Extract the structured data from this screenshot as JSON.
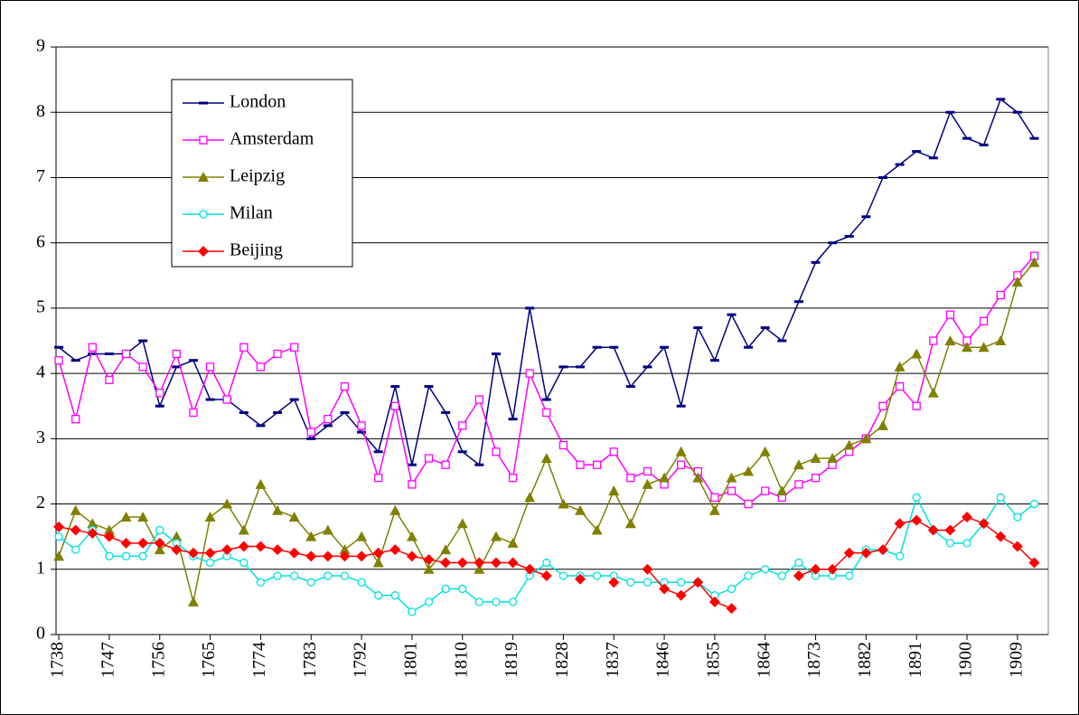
{
  "chart_data": {
    "type": "line",
    "x": [
      1738,
      1741,
      1744,
      1747,
      1750,
      1753,
      1756,
      1759,
      1762,
      1765,
      1768,
      1771,
      1774,
      1777,
      1780,
      1783,
      1786,
      1789,
      1792,
      1795,
      1798,
      1801,
      1804,
      1807,
      1810,
      1813,
      1816,
      1819,
      1822,
      1825,
      1828,
      1831,
      1834,
      1837,
      1840,
      1843,
      1846,
      1849,
      1852,
      1855,
      1858,
      1861,
      1864,
      1867,
      1870,
      1873,
      1876,
      1879,
      1882,
      1885,
      1888,
      1891,
      1894,
      1897,
      1900,
      1903,
      1906,
      1909,
      1912
    ],
    "series": [
      {
        "name": "London",
        "color": "#000080",
        "marker": "dash",
        "values": [
          4.4,
          4.2,
          4.3,
          4.3,
          4.3,
          4.5,
          3.5,
          4.1,
          4.2,
          3.6,
          3.6,
          3.4,
          3.2,
          3.4,
          3.6,
          3.0,
          3.2,
          3.4,
          3.1,
          2.8,
          3.8,
          2.6,
          3.8,
          3.4,
          2.8,
          2.6,
          4.3,
          3.3,
          5.0,
          3.6,
          4.1,
          4.1,
          4.4,
          4.4,
          3.8,
          4.1,
          4.4,
          3.5,
          4.7,
          4.2,
          4.9,
          4.4,
          4.7,
          4.5,
          5.1,
          5.7,
          6.0,
          6.1,
          6.4,
          7.0,
          7.2,
          7.4,
          7.3,
          8.0,
          7.6,
          7.5,
          8.2,
          8.0,
          7.6
        ]
      },
      {
        "name": "Amsterdam",
        "color": "#ff00ff",
        "marker": "square",
        "values": [
          4.2,
          3.3,
          4.4,
          3.9,
          4.3,
          4.1,
          3.7,
          4.3,
          3.4,
          4.1,
          3.6,
          4.4,
          4.1,
          4.3,
          4.4,
          3.1,
          3.3,
          3.8,
          3.2,
          2.4,
          3.5,
          2.3,
          2.7,
          2.6,
          3.2,
          3.6,
          2.8,
          2.4,
          4.0,
          3.4,
          2.9,
          2.6,
          2.6,
          2.8,
          2.4,
          2.5,
          2.3,
          2.6,
          2.5,
          2.1,
          2.2,
          2.0,
          2.2,
          2.1,
          2.3,
          2.4,
          2.6,
          2.8,
          3.0,
          3.5,
          3.8,
          3.5,
          4.5,
          4.9,
          4.5,
          4.8,
          5.2,
          5.5,
          5.8
        ]
      },
      {
        "name": "Leipzig",
        "color": "#808000",
        "marker": "triangle",
        "values": [
          1.2,
          1.9,
          1.7,
          1.6,
          1.8,
          1.8,
          1.3,
          1.5,
          0.5,
          1.8,
          2.0,
          1.6,
          2.3,
          1.9,
          1.8,
          1.5,
          1.6,
          1.3,
          1.5,
          1.1,
          1.9,
          1.5,
          1.0,
          1.3,
          1.7,
          1.0,
          1.5,
          1.4,
          2.1,
          2.7,
          2.0,
          1.9,
          1.6,
          2.2,
          1.7,
          2.3,
          2.4,
          2.8,
          2.4,
          1.9,
          2.4,
          2.5,
          2.8,
          2.2,
          2.6,
          2.7,
          2.7,
          2.9,
          3.0,
          3.2,
          4.1,
          4.3,
          3.7,
          4.5,
          4.4,
          4.4,
          4.5,
          5.4,
          5.7
        ]
      },
      {
        "name": "Milan",
        "color": "#00e0e0",
        "marker": "circle",
        "values": [
          1.5,
          1.3,
          1.6,
          1.2,
          1.2,
          1.2,
          1.6,
          1.4,
          1.2,
          1.1,
          1.2,
          1.1,
          0.8,
          0.9,
          0.9,
          0.8,
          0.9,
          0.9,
          0.8,
          0.6,
          0.6,
          0.35,
          0.5,
          0.7,
          0.7,
          0.5,
          0.5,
          0.5,
          0.9,
          1.1,
          0.9,
          0.9,
          0.9,
          0.9,
          0.8,
          0.8,
          0.8,
          0.8,
          0.8,
          0.6,
          0.7,
          0.9,
          1.0,
          0.9,
          1.1,
          0.9,
          0.9,
          0.9,
          1.3,
          1.3,
          1.2,
          2.1,
          1.6,
          1.4,
          1.4,
          1.7,
          2.1,
          1.8,
          2.0
        ]
      },
      {
        "name": "Beijing",
        "color": "#ff0000",
        "marker": "diamond",
        "values": [
          1.65,
          1.6,
          1.55,
          1.5,
          1.4,
          1.4,
          1.4,
          1.3,
          1.25,
          1.25,
          1.3,
          1.35,
          1.35,
          1.3,
          1.25,
          1.2,
          1.2,
          1.2,
          1.2,
          1.25,
          1.3,
          1.2,
          1.15,
          1.1,
          1.1,
          1.1,
          1.1,
          1.1,
          1.0,
          0.9,
          null,
          0.85,
          null,
          0.8,
          null,
          1.0,
          0.7,
          0.6,
          0.8,
          0.5,
          0.4,
          null,
          null,
          null,
          0.9,
          1.0,
          1.0,
          1.25,
          1.25,
          1.3,
          1.7,
          1.75,
          1.6,
          1.6,
          1.8,
          1.7,
          1.5,
          1.35,
          1.1
        ]
      }
    ],
    "xlim": [
      1737.5,
      1914.5
    ],
    "xticks": [
      1738,
      1747,
      1756,
      1765,
      1774,
      1783,
      1792,
      1801,
      1810,
      1819,
      1828,
      1837,
      1846,
      1855,
      1864,
      1873,
      1882,
      1891,
      1900,
      1909
    ],
    "ylim": [
      0,
      9
    ],
    "yticks": [
      0,
      1,
      2,
      3,
      4,
      5,
      6,
      7,
      8,
      9
    ],
    "grid": true,
    "legend": "upper-left"
  }
}
